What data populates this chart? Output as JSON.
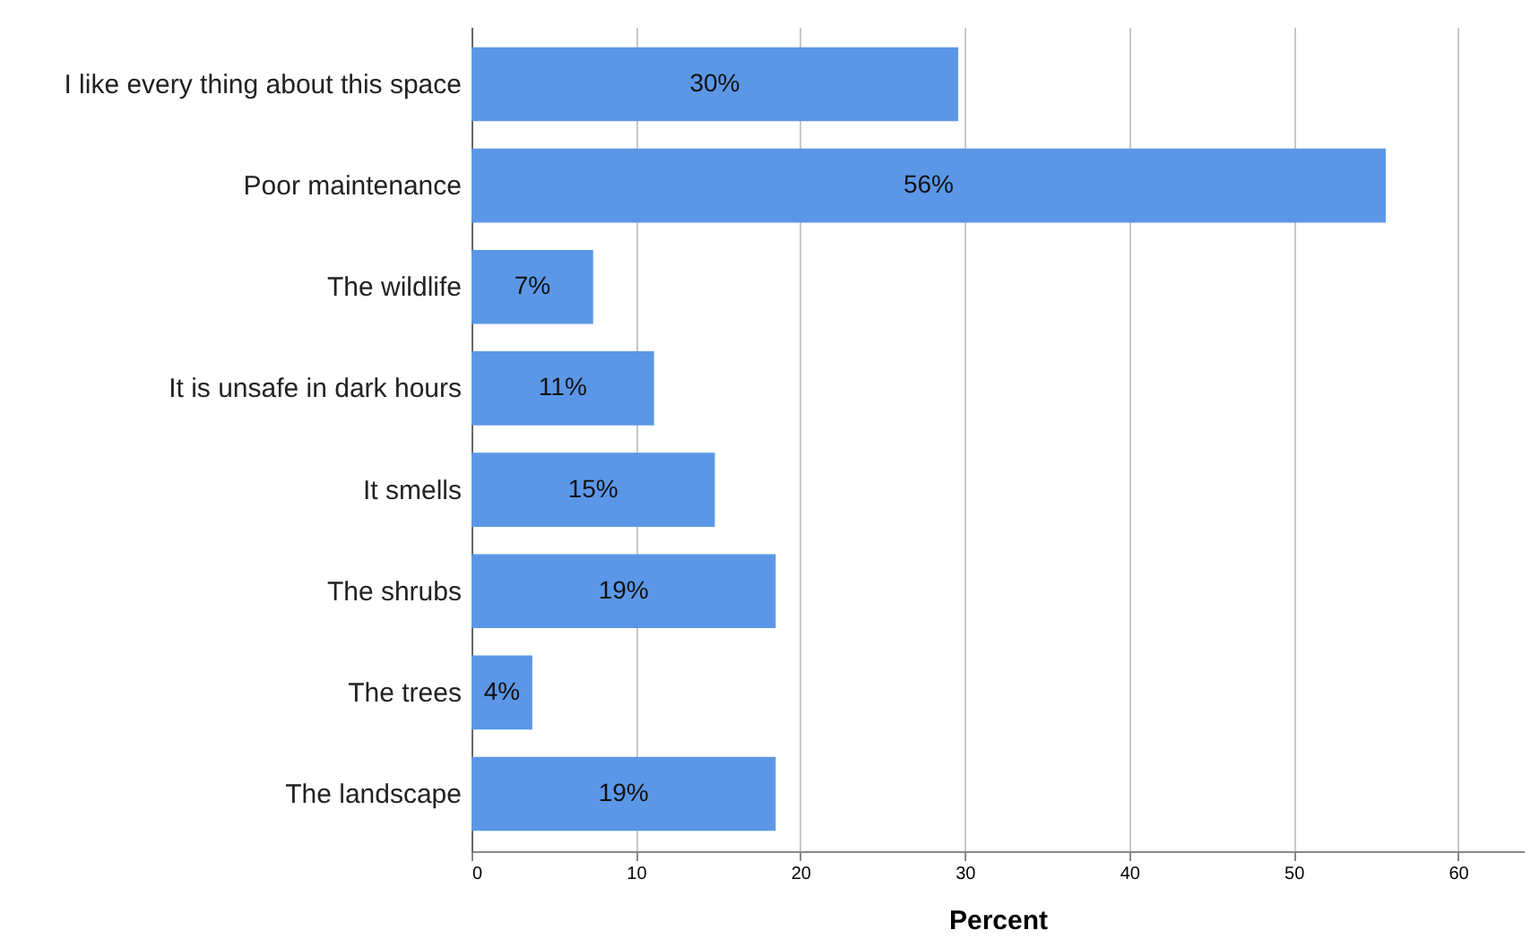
{
  "chart_data": {
    "type": "bar",
    "orientation": "horizontal",
    "xlabel": "Percent",
    "categories": [
      "I like every thing about this space",
      "Poor maintenance",
      "The wildlife",
      "It is unsafe in dark hours",
      "It smells",
      "The shrubs",
      "The trees",
      "The landscape"
    ],
    "values": [
      29.6,
      55.6,
      7.4,
      11.1,
      14.8,
      18.5,
      3.7,
      18.5
    ],
    "value_labels": [
      "30%",
      "56%",
      "7%",
      "11%",
      "15%",
      "19%",
      "4%",
      "19%"
    ],
    "color": "#5b97e6",
    "xlim": [
      0,
      64
    ],
    "xticks": [
      0,
      10,
      20,
      30,
      40,
      50,
      60
    ],
    "grid": "x"
  }
}
